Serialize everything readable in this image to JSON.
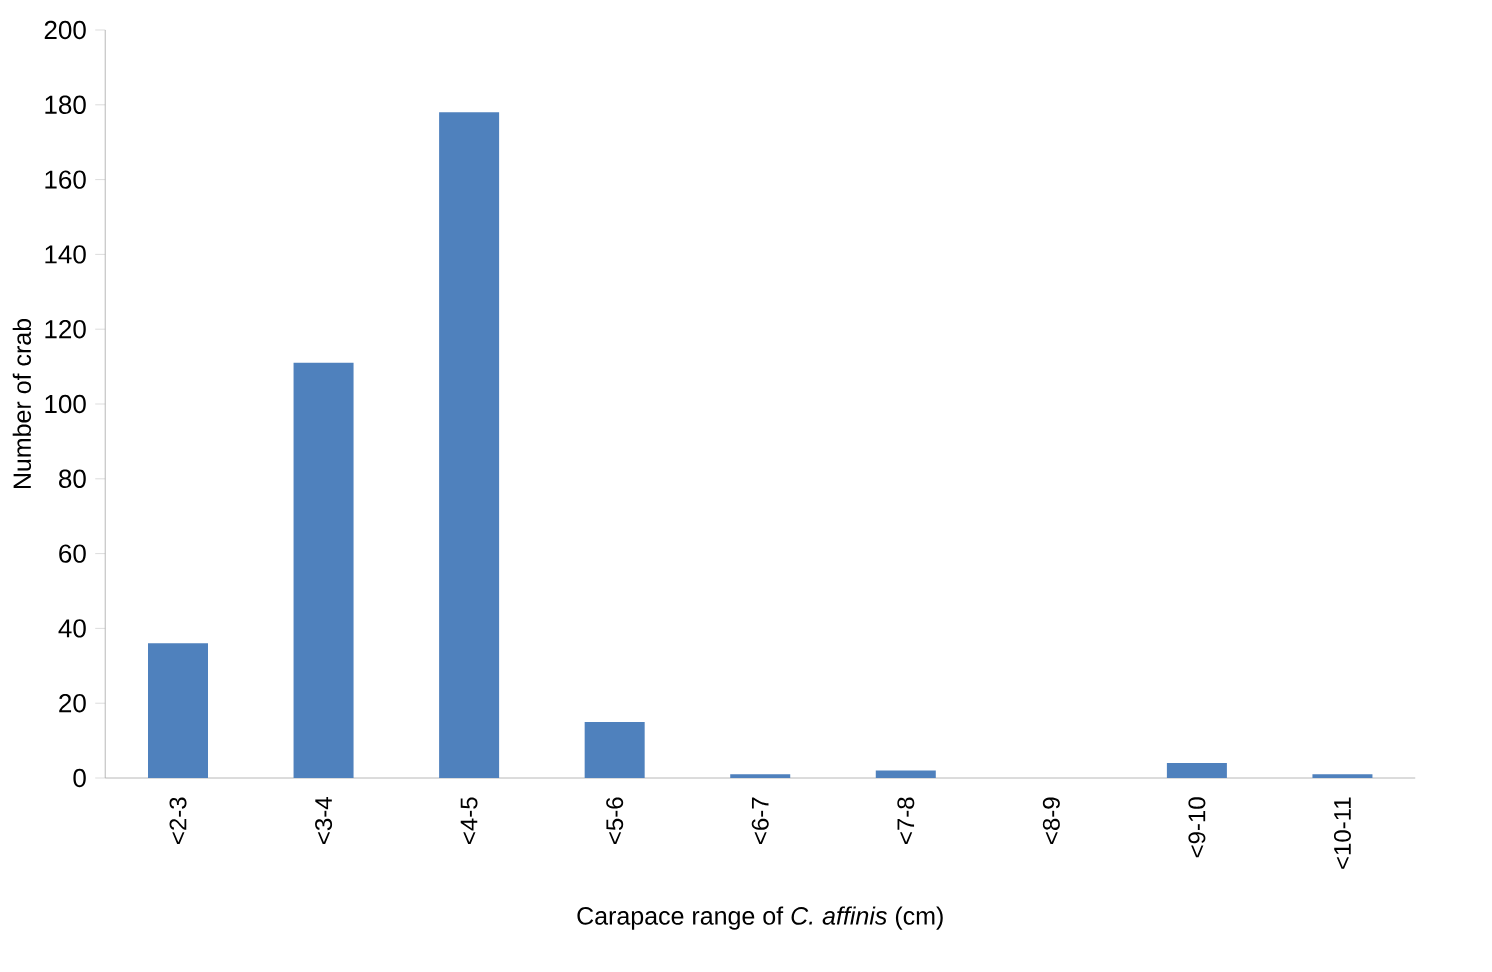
{
  "chart_data": {
    "type": "bar",
    "xlabel": "Carapace range of *C. affinis* (cm)",
    "ylabel": "Number of crab",
    "categories": [
      "<2-3",
      "<3-4",
      "<4-5",
      "<5-6",
      "<6-7",
      "<7-8",
      "<8-9",
      "<9-10",
      "<10-11"
    ],
    "values": [
      36,
      111,
      178,
      15,
      1,
      2,
      0,
      4,
      1
    ],
    "color": "#4f81bd",
    "ylim": [
      0,
      200
    ],
    "yticks": [
      0,
      20,
      40,
      60,
      80,
      100,
      120,
      140,
      160,
      180,
      200
    ],
    "grid": false
  }
}
